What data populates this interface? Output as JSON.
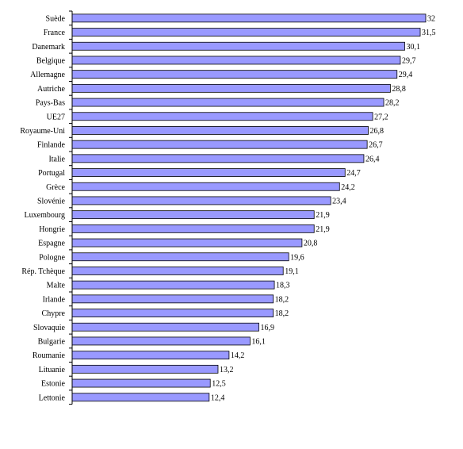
{
  "chart_data": {
    "type": "bar",
    "orientation": "horizontal",
    "title": "",
    "xlabel": "",
    "ylabel": "",
    "categories": [
      "Suède",
      "France",
      "Danemark",
      "Belgique",
      "Allemagne",
      "Autriche",
      "Pays-Bas",
      "UE27",
      "Royaume-Uni",
      "Finlande",
      "Italie",
      "Portugal",
      "Grèce",
      "Slovénie",
      "Luxembourg",
      "Hongrie",
      "Espagne",
      "Pologne",
      "Rép. Tchèque",
      "Malte",
      "Irlande",
      "Chypre",
      "Slovaquie",
      "Bulgarie",
      "Roumanie",
      "Lituanie",
      "Estonie",
      "Lettonie"
    ],
    "values": [
      32,
      31.5,
      30.1,
      29.7,
      29.4,
      28.8,
      28.2,
      27.2,
      26.8,
      26.7,
      26.4,
      24.7,
      24.2,
      23.4,
      21.9,
      21.9,
      20.8,
      19.6,
      19.1,
      18.3,
      18.2,
      18.2,
      16.9,
      16.1,
      14.2,
      13.2,
      12.5,
      12.4
    ],
    "value_labels": [
      "32",
      "31,5",
      "30,1",
      "29,7",
      "29,4",
      "28,8",
      "28,2",
      "27,2",
      "26,8",
      "26,7",
      "26,4",
      "24,7",
      "24,2",
      "23,4",
      "21,9",
      "21,9",
      "20,8",
      "19,6",
      "19,1",
      "18,3",
      "18,2",
      "18,2",
      "16,9",
      "16,1",
      "14,2",
      "13,2",
      "12,5",
      "12,4"
    ],
    "xlim": [
      0,
      32
    ],
    "grid": false,
    "legend": "none",
    "colors": {
      "bar_fill": "#9999ff",
      "bar_stroke": "#000000",
      "axis": "#000000"
    }
  }
}
